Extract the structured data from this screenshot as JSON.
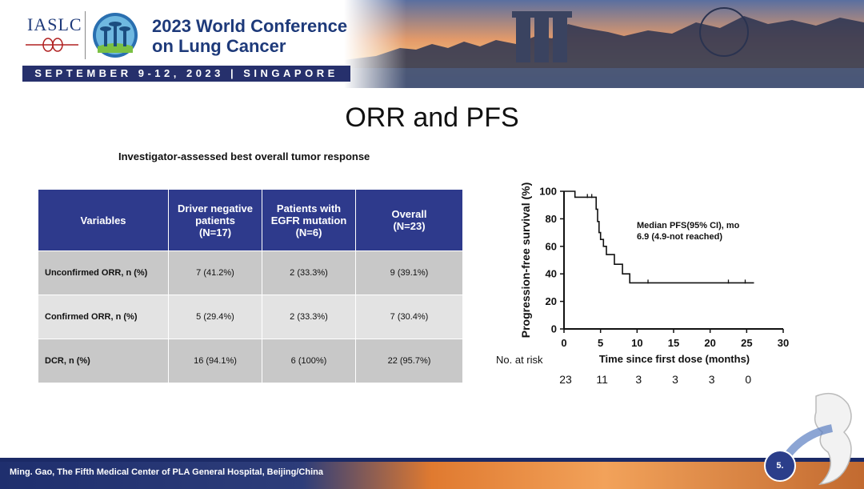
{
  "header": {
    "org": "IASLC",
    "conference_title_line1": "2023 World Conference",
    "conference_title_line2": "on Lung Cancer",
    "dates": "SEPTEMBER 9-12, 2023 | SINGAPORE"
  },
  "slide": {
    "title": "ORR and PFS",
    "table_caption": "Investigator-assessed best overall tumor response"
  },
  "table": {
    "headers": [
      {
        "line1": "Variables",
        "line2": "",
        "line3": ""
      },
      {
        "line1": "Driver negative",
        "line2": "patients",
        "line3": "(N=17)"
      },
      {
        "line1": "Patients with",
        "line2": "EGFR mutation",
        "line3": "(N=6)"
      },
      {
        "line1": "Overall",
        "line2": "(N=23)",
        "line3": ""
      }
    ],
    "rows": [
      [
        "Unconfirmed ORR, n (%)",
        "7 (41.2%)",
        "2 (33.3%)",
        "9 (39.1%)"
      ],
      [
        "Confirmed ORR, n (%)",
        "5 (29.4%)",
        "2 (33.3%)",
        "7 (30.4%)"
      ],
      [
        "DCR, n (%)",
        "16 (94.1%)",
        "6 (100%)",
        "22 (95.7%)"
      ]
    ]
  },
  "chart_data": {
    "type": "line",
    "ylabel": "Progression-free survival (%)",
    "xlabel": "Time since first dose (months)",
    "x_ticks": [
      "0",
      "5",
      "10",
      "15",
      "20",
      "25",
      "30"
    ],
    "y_ticks": [
      "0",
      "20",
      "40",
      "60",
      "80",
      "100"
    ],
    "xlim": [
      0,
      30
    ],
    "ylim": [
      0,
      100
    ],
    "annotation_line1": "Median PFS(95% CI), mo",
    "annotation_line2": "6.9 (4.9-not reached)",
    "curve": {
      "x": [
        0,
        1.5,
        1.5,
        4.4,
        4.4,
        4.6,
        4.6,
        4.8,
        4.8,
        5.0,
        5.0,
        5.4,
        5.4,
        5.8,
        5.8,
        6.9,
        6.9,
        8.0,
        8.0,
        9.0,
        9.0,
        26
      ],
      "y": [
        100,
        100,
        95.7,
        95.7,
        87,
        87,
        78,
        78,
        70,
        70,
        65,
        65,
        60,
        60,
        54,
        54,
        47,
        47,
        40,
        40,
        33.5,
        33.5
      ]
    },
    "censor_x": [
      3.2,
      3.8,
      11.5,
      22.5,
      24.8
    ],
    "at_risk_label": "No. at risk",
    "at_risk_x": [
      0,
      5,
      10,
      15,
      20,
      25
    ],
    "at_risk_values": [
      "23",
      "11",
      "3",
      "3",
      "3",
      "0"
    ]
  },
  "footer": {
    "presenter": "Ming. Gao, The Fifth Medical Center of PLA General Hospital, Beijing/China",
    "page_number": "5."
  }
}
